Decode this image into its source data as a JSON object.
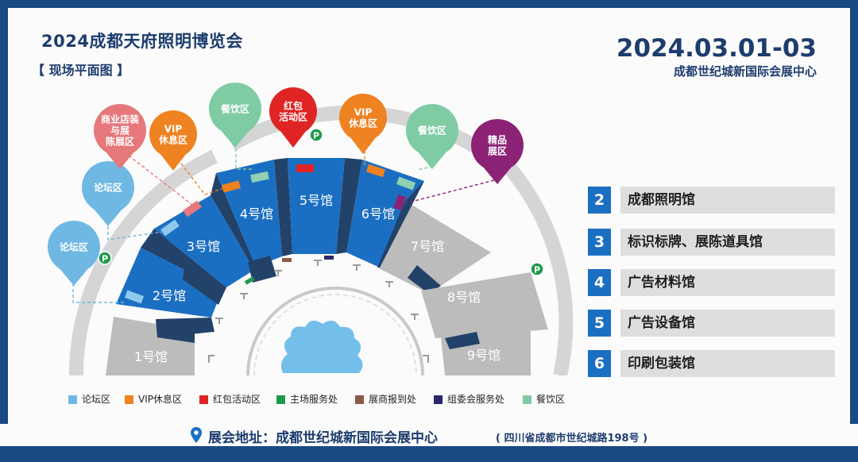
{
  "header": {
    "title": "2024成都天府照明博览会",
    "subtitle": "【 现场平面图 】",
    "date": "2024.03.01-03",
    "venue": "成都世纪城新国际会展中心"
  },
  "halls": [
    {
      "label": "1号馆",
      "type": "other"
    },
    {
      "label": "2号馆",
      "type": "exhibit"
    },
    {
      "label": "3号馆",
      "type": "exhibit"
    },
    {
      "label": "4号馆",
      "type": "exhibit"
    },
    {
      "label": "5号馆",
      "type": "exhibit"
    },
    {
      "label": "6号馆",
      "type": "exhibit"
    },
    {
      "label": "7号馆",
      "type": "other"
    },
    {
      "label": "8号馆",
      "type": "other"
    },
    {
      "label": "9号馆",
      "type": "other"
    }
  ],
  "pins": [
    {
      "label": "论坛区",
      "color": "#6fb8e4"
    },
    {
      "label": "论坛区",
      "color": "#6fb8e4"
    },
    {
      "label": "商业店装与展陈展区",
      "color": "#e6787b"
    },
    {
      "label": "VIP休息区",
      "color": "#ef8221"
    },
    {
      "label": "餐饮区",
      "color": "#7fcba4"
    },
    {
      "label": "红包活动区",
      "color": "#e02424"
    },
    {
      "label": "VIP休息区",
      "color": "#ef8221"
    },
    {
      "label": "餐饮区",
      "color": "#7fcba4"
    },
    {
      "label": "精品展区",
      "color": "#8c2276"
    }
  ],
  "hall_list": [
    {
      "num": "2",
      "name": "成都照明馆"
    },
    {
      "num": "3",
      "name": "标识标牌、展陈道具馆"
    },
    {
      "num": "4",
      "name": "广告材料馆"
    },
    {
      "num": "5",
      "name": "广告设备馆"
    },
    {
      "num": "6",
      "name": "印刷包装馆"
    }
  ],
  "legend": [
    {
      "label": "论坛区",
      "color": "#6fb8e4"
    },
    {
      "label": "VIP休息区",
      "color": "#ef8221"
    },
    {
      "label": "红包活动区",
      "color": "#e02424"
    },
    {
      "label": "主场服务处",
      "color": "#1f9a4a"
    },
    {
      "label": "展商报到处",
      "color": "#8a5a4a"
    },
    {
      "label": "组委会服务处",
      "color": "#2a2670"
    },
    {
      "label": "餐饮区",
      "color": "#7fcba4"
    }
  ],
  "parking_label": "P",
  "address": {
    "label": "展会地址：成都世纪城新国际会展中心",
    "detail": "( 四川省成都市世纪城路198号 )"
  },
  "colors": {
    "navy": "#1a4a82",
    "hall_blue": "#1b6fc3",
    "hall_gray": "#bcbcbc"
  }
}
